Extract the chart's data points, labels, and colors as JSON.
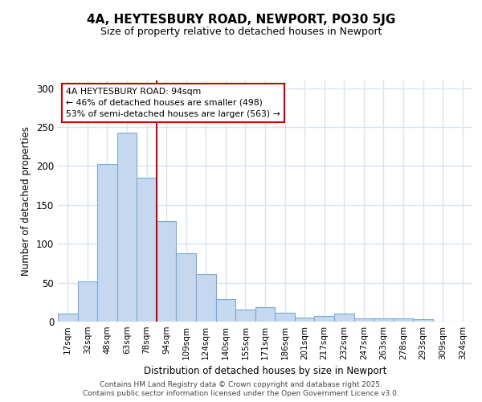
{
  "title": "4A, HEYTESBURY ROAD, NEWPORT, PO30 5JG",
  "subtitle": "Size of property relative to detached houses in Newport",
  "xlabel": "Distribution of detached houses by size in Newport",
  "ylabel": "Number of detached properties",
  "categories": [
    "17sqm",
    "32sqm",
    "48sqm",
    "63sqm",
    "78sqm",
    "94sqm",
    "109sqm",
    "124sqm",
    "140sqm",
    "155sqm",
    "171sqm",
    "186sqm",
    "201sqm",
    "217sqm",
    "232sqm",
    "247sqm",
    "263sqm",
    "278sqm",
    "293sqm",
    "309sqm",
    "324sqm"
  ],
  "values": [
    10,
    52,
    203,
    243,
    185,
    129,
    88,
    61,
    29,
    16,
    19,
    11,
    5,
    7,
    10,
    4,
    4,
    4,
    3,
    0,
    0
  ],
  "bar_color": "#c5d8f0",
  "bar_edge_color": "#7aaad4",
  "vline_index": 5,
  "vline_color": "#cc0000",
  "annotation_title": "4A HEYTESBURY ROAD: 94sqm",
  "annotation_line1": "← 46% of detached houses are smaller (498)",
  "annotation_line2": "53% of semi-detached houses are larger (563) →",
  "ylim": [
    0,
    310
  ],
  "yticks": [
    0,
    50,
    100,
    150,
    200,
    250,
    300
  ],
  "background_color": "#ffffff",
  "plot_bg_color": "#ffffff",
  "grid_color": "#d8e4f0",
  "footer1": "Contains HM Land Registry data © Crown copyright and database right 2025.",
  "footer2": "Contains public sector information licensed under the Open Government Licence v3.0."
}
